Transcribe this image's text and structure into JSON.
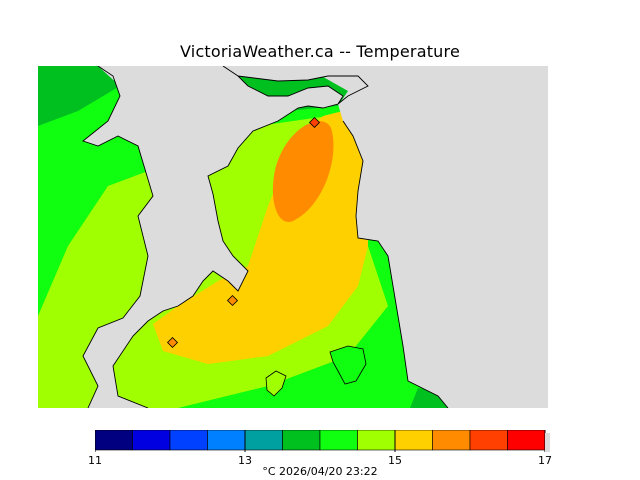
{
  "header": {
    "title": "VictoriaWeather.ca -- Temperature"
  },
  "legend": {
    "colors": [
      "#000080",
      "#0000e0",
      "#0040ff",
      "#0080ff",
      "#00a0a0",
      "#00c020",
      "#10ff10",
      "#a0ff00",
      "#ffd000",
      "#ff8c00",
      "#ff4000",
      "#ff0000"
    ],
    "ticks": [
      "11",
      "13",
      "15",
      "17"
    ],
    "caption": "°C  2026/04/20 23:22"
  },
  "map": {
    "land_color": "#dcdcdc",
    "stations": [
      "station-1",
      "station-2",
      "station-3"
    ]
  }
}
